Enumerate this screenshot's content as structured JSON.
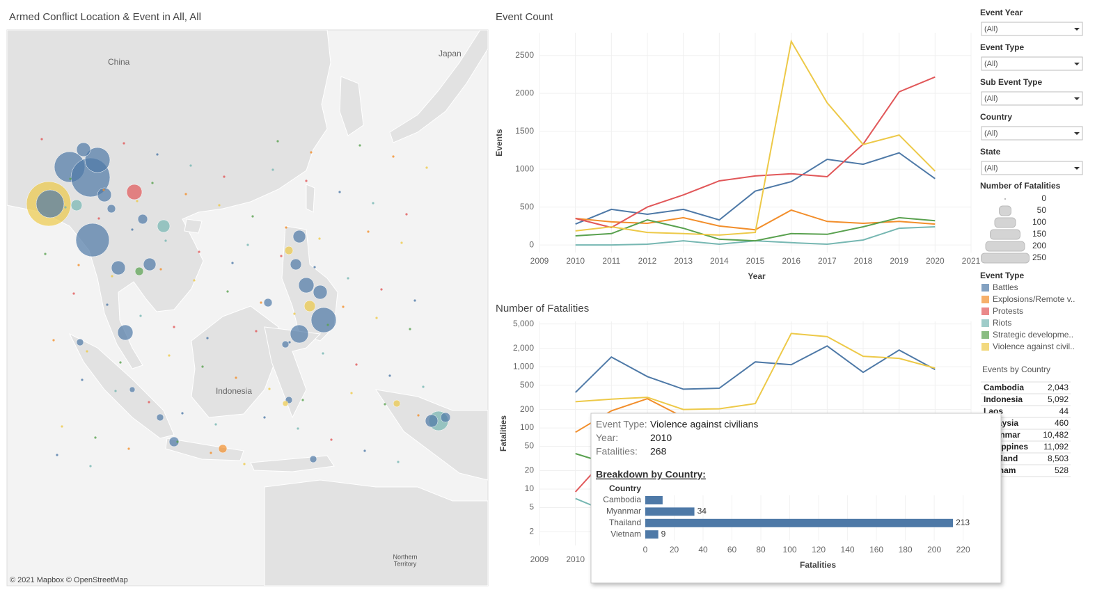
{
  "map": {
    "title": "Armed Conflict Location & Event in All, All",
    "labels": [
      "China",
      "Japan",
      "Indonesia",
      "Northern",
      "Territory"
    ],
    "attribution": "© 2021 Mapbox © OpenStreetMap"
  },
  "chart_data": [
    {
      "type": "line",
      "title": "Event Count",
      "x_label": "Year",
      "y_label": "Events",
      "x": [
        2010,
        2011,
        2012,
        2013,
        2014,
        2015,
        2016,
        2017,
        2018,
        2019,
        2020
      ],
      "xlim": [
        2009,
        2021
      ],
      "xticks": [
        2009,
        2010,
        2011,
        2012,
        2013,
        2014,
        2015,
        2016,
        2017,
        2018,
        2019,
        2020,
        2021
      ],
      "ylim": [
        -100,
        2800
      ],
      "yticks": [
        0,
        500,
        1000,
        1500,
        2000,
        2500
      ],
      "grid": true,
      "series": [
        {
          "name": "Battles",
          "color": "#4e79a7",
          "values": [
            275,
            470,
            405,
            470,
            330,
            710,
            835,
            1130,
            1065,
            1215,
            875
          ]
        },
        {
          "name": "Explosions/Remote v..",
          "color": "#f28e2b",
          "values": [
            350,
            305,
            285,
            360,
            250,
            200,
            460,
            310,
            285,
            310,
            275
          ]
        },
        {
          "name": "Protests",
          "color": "#e15759",
          "values": [
            350,
            230,
            500,
            660,
            845,
            910,
            940,
            900,
            1330,
            2020,
            2215
          ]
        },
        {
          "name": "Riots",
          "color": "#76b7b2",
          "values": [
            0,
            0,
            10,
            55,
            10,
            55,
            30,
            10,
            65,
            220,
            240
          ]
        },
        {
          "name": "Strategic developme..",
          "color": "#59a14f",
          "values": [
            120,
            150,
            330,
            220,
            75,
            55,
            150,
            140,
            240,
            360,
            320
          ]
        },
        {
          "name": "Violence against civil..",
          "color": "#edc948",
          "values": [
            185,
            240,
            165,
            150,
            130,
            165,
            2685,
            1875,
            1325,
            1450,
            975
          ]
        }
      ]
    },
    {
      "type": "line",
      "title": "Number of Fatalities",
      "y_label": "Fatalities",
      "log_scale": true,
      "x": [
        2010,
        2011,
        2012,
        2013,
        2014,
        2015,
        2016,
        2017,
        2018,
        2019,
        2020
      ],
      "xlim": [
        2009,
        2021
      ],
      "xticks": [
        2009,
        2010,
        2011,
        2012,
        2013,
        2014,
        2015,
        2016,
        2017,
        2018,
        2019,
        2020,
        2021
      ],
      "ylim": [
        1.2,
        5500
      ],
      "yticks": [
        2,
        5,
        10,
        20,
        50,
        100,
        200,
        500,
        {
          "value": 1000,
          "label": "1,000"
        },
        {
          "value": 2000,
          "label": "2,000"
        },
        {
          "value": 5000,
          "label": "5,000"
        }
      ],
      "grid": true,
      "series": [
        {
          "name": "Battles",
          "color": "#4e79a7",
          "values": [
            380,
            1440,
            690,
            430,
            445,
            1200,
            1080,
            2180,
            810,
            1870,
            900
          ]
        },
        {
          "name": "Explosions/Remote v..",
          "color": "#f28e2b",
          "values": [
            85,
            190,
            300,
            150,
            null,
            null,
            null,
            null,
            null,
            null,
            null
          ]
        },
        {
          "name": "Protests",
          "color": "#e15759",
          "values": [
            9,
            40,
            null,
            null,
            null,
            null,
            null,
            null,
            null,
            null,
            null
          ]
        },
        {
          "name": "Riots",
          "color": "#76b7b2",
          "values": [
            7,
            4,
            null,
            null,
            null,
            null,
            null,
            null,
            null,
            null,
            null
          ]
        },
        {
          "name": "Strategic developme..",
          "color": "#59a14f",
          "values": [
            38,
            25,
            null,
            null,
            null,
            null,
            null,
            null,
            null,
            null,
            null
          ]
        },
        {
          "name": "Violence against civil..",
          "color": "#edc948",
          "values": [
            268,
            295,
            316,
            200,
            205,
            250,
            3500,
            3100,
            1480,
            1370,
            950
          ]
        }
      ]
    },
    {
      "type": "bar",
      "orientation": "horizontal",
      "title": "Breakdown by Country:",
      "y_label": "Country",
      "x_label": "Fatalities",
      "categories": [
        "Cambodia",
        "Myanmar",
        "Thailand",
        "Vietnam"
      ],
      "values": [
        12,
        34,
        213,
        9
      ],
      "value_labels": [
        null,
        "34",
        "213",
        "9"
      ],
      "color": "#4e79a7",
      "xlim": [
        0,
        225
      ],
      "xticks": [
        0,
        20,
        40,
        60,
        80,
        100,
        120,
        140,
        160,
        180,
        200,
        220
      ]
    }
  ],
  "tooltip": {
    "rows": [
      {
        "label": "Event Type:",
        "value": "Violence against civilians"
      },
      {
        "label": "Year:",
        "value": "2010"
      },
      {
        "label": "Fatalities:",
        "value": "268"
      }
    ]
  },
  "filters": [
    {
      "label": "Event Year",
      "value": "(All)"
    },
    {
      "label": "Event Type",
      "value": "(All)"
    },
    {
      "label": "Sub Event Type",
      "value": "(All)"
    },
    {
      "label": "Country",
      "value": "(All)"
    },
    {
      "label": "State",
      "value": "(All)"
    }
  ],
  "size_legend": {
    "title": "Number of Fatalities",
    "items": [
      0,
      50,
      100,
      150,
      200,
      250
    ]
  },
  "color_legend_title": "Event Type",
  "events_by_country": {
    "title": "Events by Country",
    "rows": [
      [
        "Cambodia",
        "2,043"
      ],
      [
        "Indonesia",
        "5,092"
      ],
      [
        "Laos",
        "44"
      ],
      [
        "Malaysia",
        "460"
      ],
      [
        "Myanmar",
        "10,482"
      ],
      [
        "Philippines",
        "11,092"
      ],
      [
        "Thailand",
        "8,503"
      ],
      [
        "Vietnam",
        "528"
      ]
    ]
  }
}
